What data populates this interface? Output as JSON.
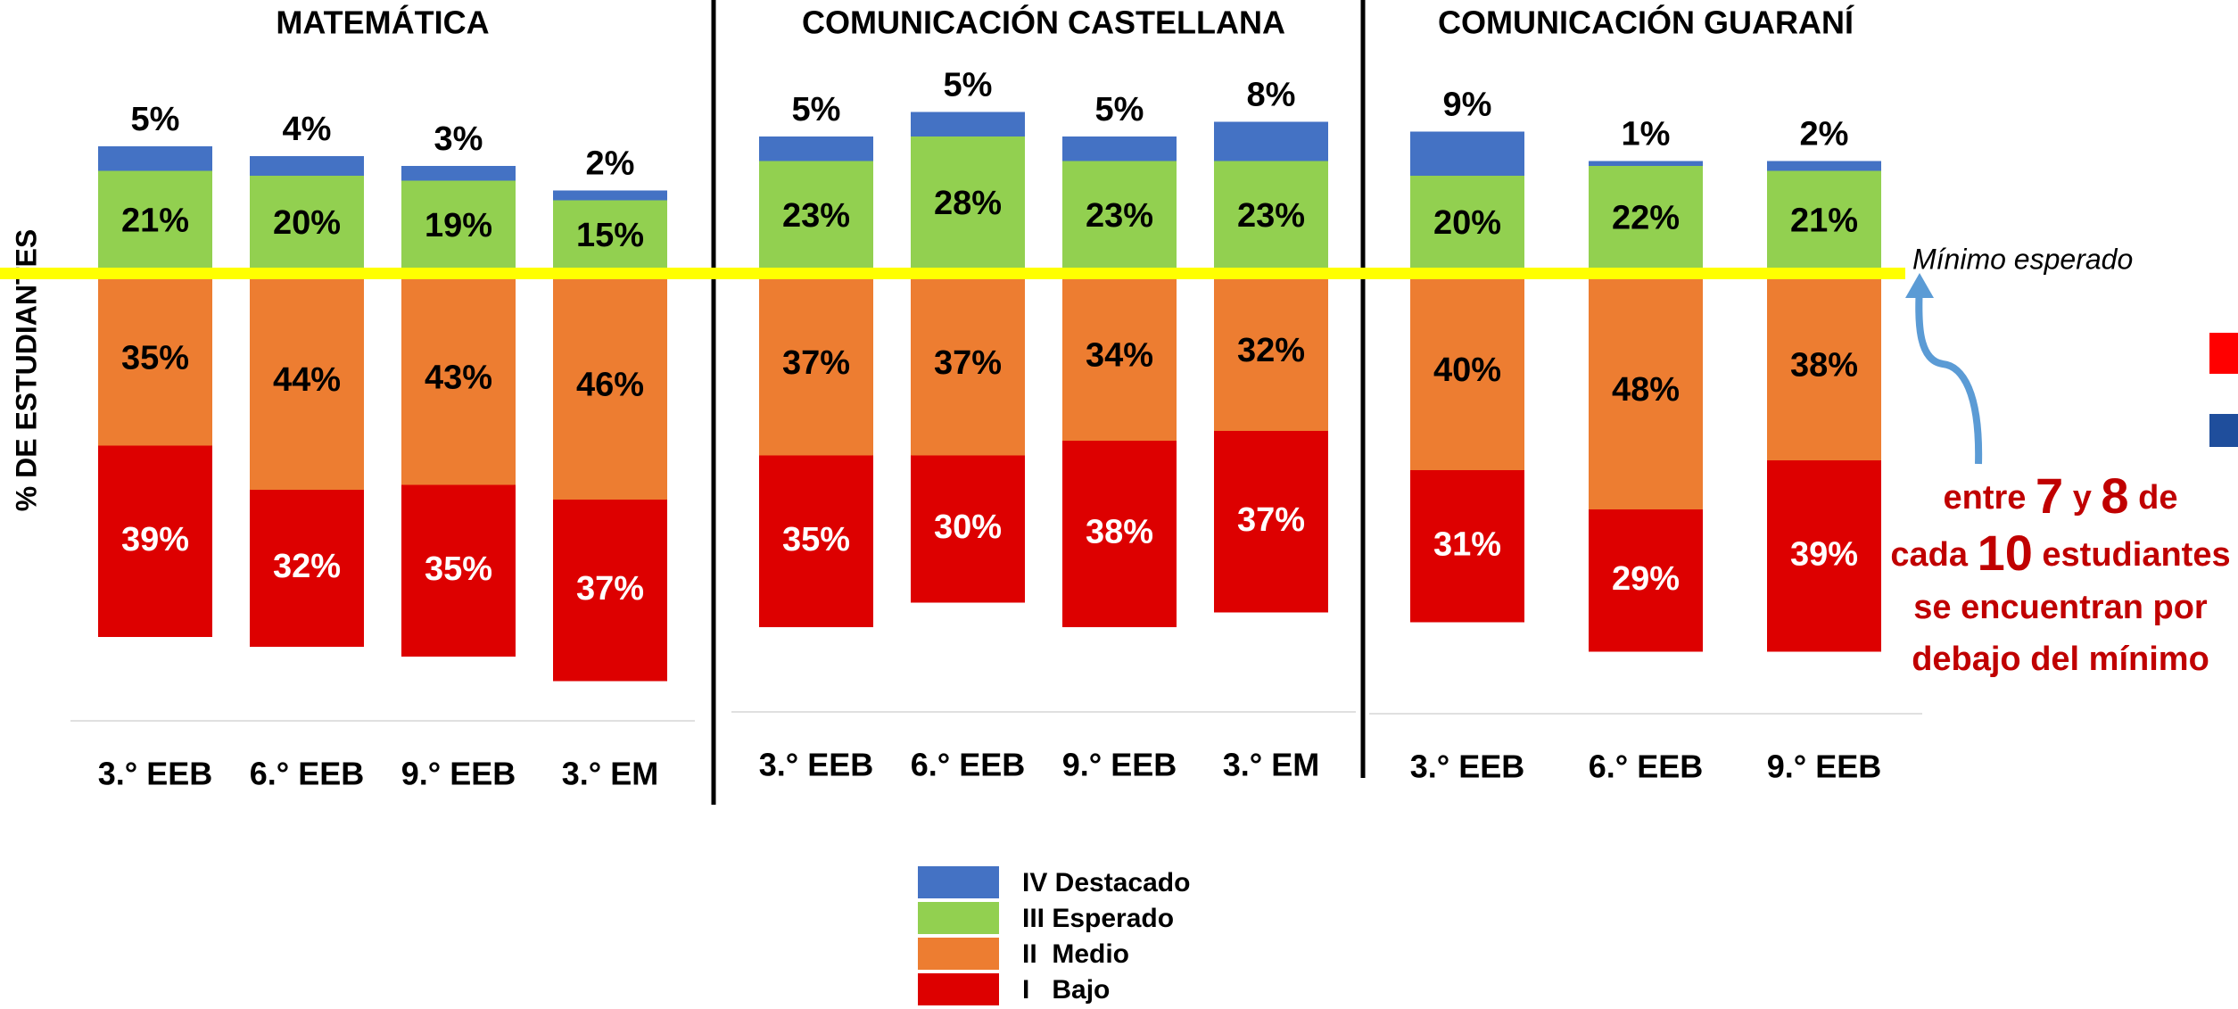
{
  "ylabel": "% DE ESTUDIANTES",
  "reference_label": "Mínimo esperado",
  "annotation": [
    [
      "entre ",
      "7",
      " y ",
      "8",
      " de"
    ],
    [
      "cada ",
      "10",
      " estudiantes"
    ],
    [
      "se encuentran por"
    ],
    [
      "debajo del mínimo"
    ]
  ],
  "legend": [
    {
      "name": "IV Destacado",
      "color": "#4472c4"
    },
    {
      "name": "III Esperado",
      "color": "#92d050"
    },
    {
      "name": "II  Medio",
      "color": "#ed7d31"
    },
    {
      "name": "I   Bajo",
      "color": "#dd0000"
    }
  ],
  "chart_data": [
    {
      "type": "bar",
      "title": "MATEMÁTICA",
      "categories": [
        "3.° EEB",
        "6.° EEB",
        "9.° EEB",
        "3.° EM"
      ],
      "series": [
        {
          "values": [
            5,
            4,
            3,
            2
          ],
          "value_labels": [
            "5%",
            "4%",
            "3%",
            "2%"
          ]
        },
        {
          "values": [
            21,
            20,
            19,
            15
          ],
          "value_labels": [
            "21%",
            "20%",
            "19%",
            "15%"
          ]
        },
        {
          "values": [
            35,
            44,
            43,
            46
          ],
          "value_labels": [
            "35%",
            "44%",
            "43%",
            "46%"
          ]
        },
        {
          "values": [
            39,
            32,
            35,
            37
          ],
          "value_labels": [
            "39%",
            "32%",
            "35%",
            "37%"
          ]
        }
      ]
    },
    {
      "type": "bar",
      "title": "COMUNICACIÓN CASTELLANA",
      "categories": [
        "3.° EEB",
        "6.° EEB",
        "9.° EEB",
        "3.° EM"
      ],
      "series": [
        {
          "values": [
            5,
            5,
            5,
            8
          ],
          "value_labels": [
            "5%",
            "5%",
            "5%",
            "8%"
          ]
        },
        {
          "values": [
            23,
            28,
            23,
            23
          ],
          "value_labels": [
            "23%",
            "28%",
            "23%",
            "23%"
          ]
        },
        {
          "values": [
            37,
            37,
            34,
            32
          ],
          "value_labels": [
            "37%",
            "37%",
            "34%",
            "32%"
          ]
        },
        {
          "values": [
            35,
            30,
            38,
            37
          ],
          "value_labels": [
            "35%",
            "30%",
            "38%",
            "37%"
          ]
        }
      ]
    },
    {
      "type": "bar",
      "title": "COMUNICACIÓN GUARANÍ",
      "categories": [
        "3.° EEB",
        "6.° EEB",
        "9.° EEB"
      ],
      "series": [
        {
          "values": [
            9,
            1,
            2
          ],
          "value_labels": [
            "9%",
            "1%",
            "2%"
          ]
        },
        {
          "values": [
            20,
            22,
            21
          ],
          "value_labels": [
            "20%",
            "22%",
            "21%"
          ]
        },
        {
          "values": [
            40,
            48,
            38
          ],
          "value_labels": [
            "40%",
            "48%",
            "38%"
          ]
        },
        {
          "values": [
            31,
            29,
            39
          ],
          "value_labels": [
            "31%",
            "29%",
            "39%"
          ]
        }
      ]
    }
  ]
}
